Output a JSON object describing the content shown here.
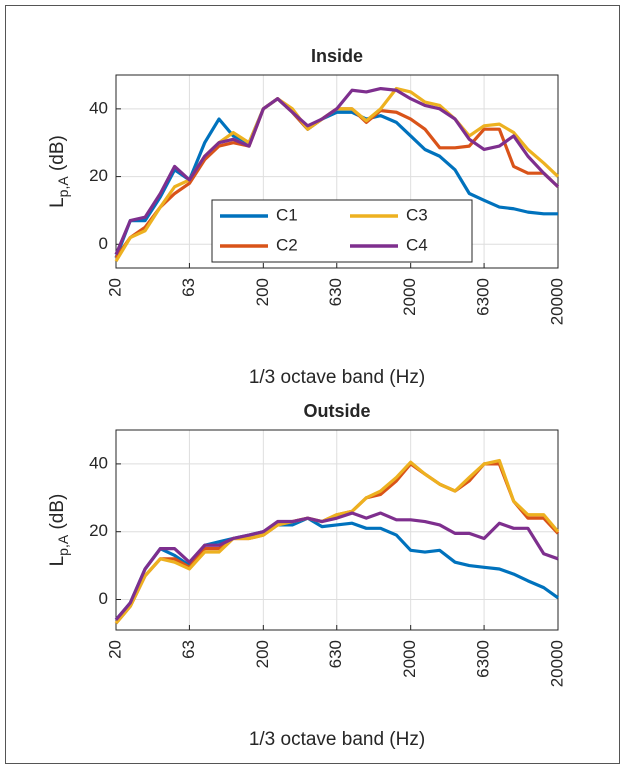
{
  "chart_data": [
    {
      "type": "line",
      "title": "Inside",
      "xlabel": "1/3 octave band (Hz)",
      "ylabel": {
        "main": "L",
        "sub": "p,A",
        "unit": "(dB)"
      },
      "xscale": "log",
      "grid": true,
      "legend": "lower center",
      "legend_columns": 2,
      "x": [
        20,
        25,
        31.5,
        40,
        50,
        63,
        80,
        100,
        125,
        160,
        200,
        250,
        315,
        400,
        500,
        630,
        800,
        1000,
        1250,
        1600,
        2000,
        2500,
        3150,
        4000,
        5000,
        6300,
        8000,
        10000,
        12500,
        16000,
        20000
      ],
      "xlim": [
        20,
        20000
      ],
      "xticks": [
        20,
        63,
        200,
        630,
        2000,
        6300,
        20000
      ],
      "ylim": [
        -7,
        50
      ],
      "yticks": [
        0,
        20,
        40
      ],
      "series": [
        {
          "name": "C1",
          "color": "#0072BD",
          "values": [
            -4,
            7,
            7,
            14,
            22,
            19,
            30,
            37,
            32,
            30,
            40,
            43,
            39,
            34,
            37,
            39,
            39,
            37,
            38,
            36,
            32,
            28,
            26,
            22,
            15,
            13,
            11,
            10.5,
            9.5,
            9,
            9
          ]
        },
        {
          "name": "C2",
          "color": "#D95319",
          "values": [
            -4,
            2,
            5,
            11,
            15,
            18,
            25,
            29,
            30,
            29,
            40,
            43,
            39,
            34,
            37,
            40,
            40,
            36,
            39.5,
            39,
            37,
            34,
            28.5,
            28.5,
            29,
            34,
            34,
            23,
            21,
            21,
            17
          ]
        },
        {
          "name": "C3",
          "color": "#EDB120",
          "values": [
            -5,
            2,
            4,
            11,
            17,
            19,
            26,
            30,
            33,
            30,
            40,
            43,
            40,
            34,
            37,
            40,
            40,
            36.5,
            40,
            46,
            45,
            42,
            41,
            37,
            32,
            35,
            35.5,
            33,
            28,
            24,
            20
          ]
        },
        {
          "name": "C4",
          "color": "#7E2F8E",
          "values": [
            -3,
            7,
            8,
            15,
            23,
            19,
            26,
            30,
            31,
            29,
            40,
            43,
            39,
            35,
            37,
            40,
            45.5,
            45,
            46,
            45.5,
            43,
            41,
            40,
            37,
            31,
            28,
            29,
            32,
            26,
            21,
            17
          ]
        }
      ]
    },
    {
      "type": "line",
      "title": "Outside",
      "xlabel": "1/3 octave band (Hz)",
      "ylabel": {
        "main": "L",
        "sub": "p,A",
        "unit": "(dB)"
      },
      "xscale": "log",
      "grid": true,
      "x": [
        20,
        25,
        31.5,
        40,
        50,
        63,
        80,
        100,
        125,
        160,
        200,
        250,
        315,
        400,
        500,
        630,
        800,
        1000,
        1250,
        1600,
        2000,
        2500,
        3150,
        4000,
        5000,
        6300,
        8000,
        10000,
        12500,
        16000,
        20000
      ],
      "xlim": [
        20,
        20000
      ],
      "xticks": [
        20,
        63,
        200,
        630,
        2000,
        6300,
        20000
      ],
      "ylim": [
        -9,
        50
      ],
      "yticks": [
        0,
        20,
        40
      ],
      "series": [
        {
          "name": "C1",
          "color": "#0072BD",
          "values": [
            -6,
            -1,
            9,
            15,
            13,
            10,
            16,
            17,
            18,
            19,
            20,
            22,
            22,
            24,
            21.5,
            22,
            22.5,
            21,
            21,
            19,
            14.5,
            14,
            14.5,
            11,
            10,
            9.5,
            9,
            7.5,
            5.5,
            3.5,
            0.5
          ]
        },
        {
          "name": "C2",
          "color": "#D95319",
          "values": [
            -7,
            -2,
            7,
            12,
            12,
            9.5,
            15,
            15,
            18,
            18,
            19,
            22,
            23,
            24,
            23,
            25,
            26,
            30,
            31,
            35,
            40,
            37,
            34,
            32,
            35,
            40,
            40,
            29,
            24,
            24,
            19.5
          ]
        },
        {
          "name": "C3",
          "color": "#EDB120",
          "values": [
            -7,
            -2,
            7,
            12,
            11,
            9,
            14,
            14,
            18,
            18,
            19,
            22,
            23,
            24,
            23,
            25,
            26,
            30,
            32,
            36,
            40.5,
            37,
            34,
            32,
            36,
            40,
            41,
            29,
            25,
            25,
            20
          ]
        },
        {
          "name": "C4",
          "color": "#7E2F8E",
          "values": [
            -6,
            -1,
            9,
            15,
            15,
            11,
            16,
            16,
            18,
            19,
            20,
            23,
            23,
            24,
            23,
            24,
            25.5,
            24,
            25.5,
            23.5,
            23.5,
            23,
            22,
            19.5,
            19.5,
            18,
            22.5,
            21,
            21,
            13.5,
            12
          ]
        }
      ]
    }
  ]
}
